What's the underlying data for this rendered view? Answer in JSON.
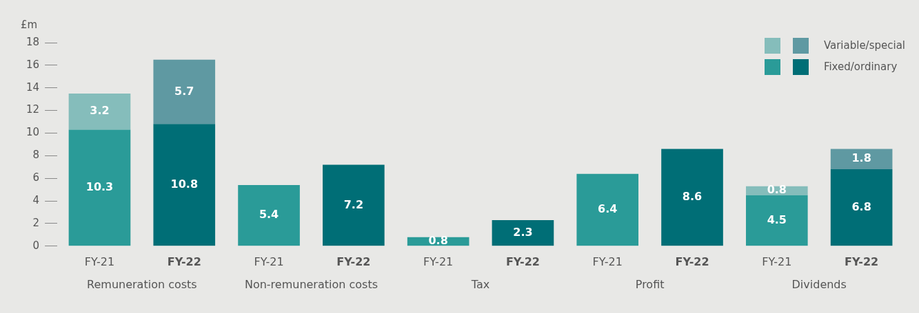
{
  "chart_data": {
    "type": "bar",
    "ylabel": "£m",
    "categories": [
      "FY-21",
      "FY-22",
      "FY-21",
      "FY-22",
      "FY-21",
      "FY-22",
      "FY-21",
      "FY-22",
      "FY-21",
      "FY-22"
    ],
    "series": [
      {
        "name": "Fixed/ordinary",
        "colors": [
          "#2a9b98",
          "#006e76",
          "#2a9b98",
          "#006e76",
          "#2a9b98",
          "#006e76",
          "#2a9b98",
          "#006e76",
          "#2a9b98",
          "#006e76"
        ],
        "values": [
          10.3,
          10.8,
          5.4,
          7.2,
          0.8,
          2.3,
          6.4,
          8.6,
          4.5,
          6.8
        ]
      },
      {
        "name": "Variable/special",
        "colors": [
          "#85bdbb",
          "#5f99a2",
          "#85bdbb",
          "#5f99a2",
          "#85bdbb",
          "#5f99a2",
          "#85bdbb",
          "#5f99a2",
          "#85bdbb",
          "#5f99a2"
        ],
        "values": [
          3.2,
          5.7,
          null,
          null,
          null,
          null,
          null,
          null,
          0.8,
          1.8
        ]
      }
    ],
    "stacked": true,
    "data_labels": true,
    "ylim": [
      0,
      18
    ],
    "yticks": [
      0,
      2,
      4,
      6,
      8,
      10,
      12,
      14,
      16,
      18
    ],
    "grid": false,
    "legend": "top right",
    "annotations": [
      "Remuneration costs",
      "Non-remuneration costs",
      "Tax",
      "Profit",
      "Dividends"
    ]
  }
}
